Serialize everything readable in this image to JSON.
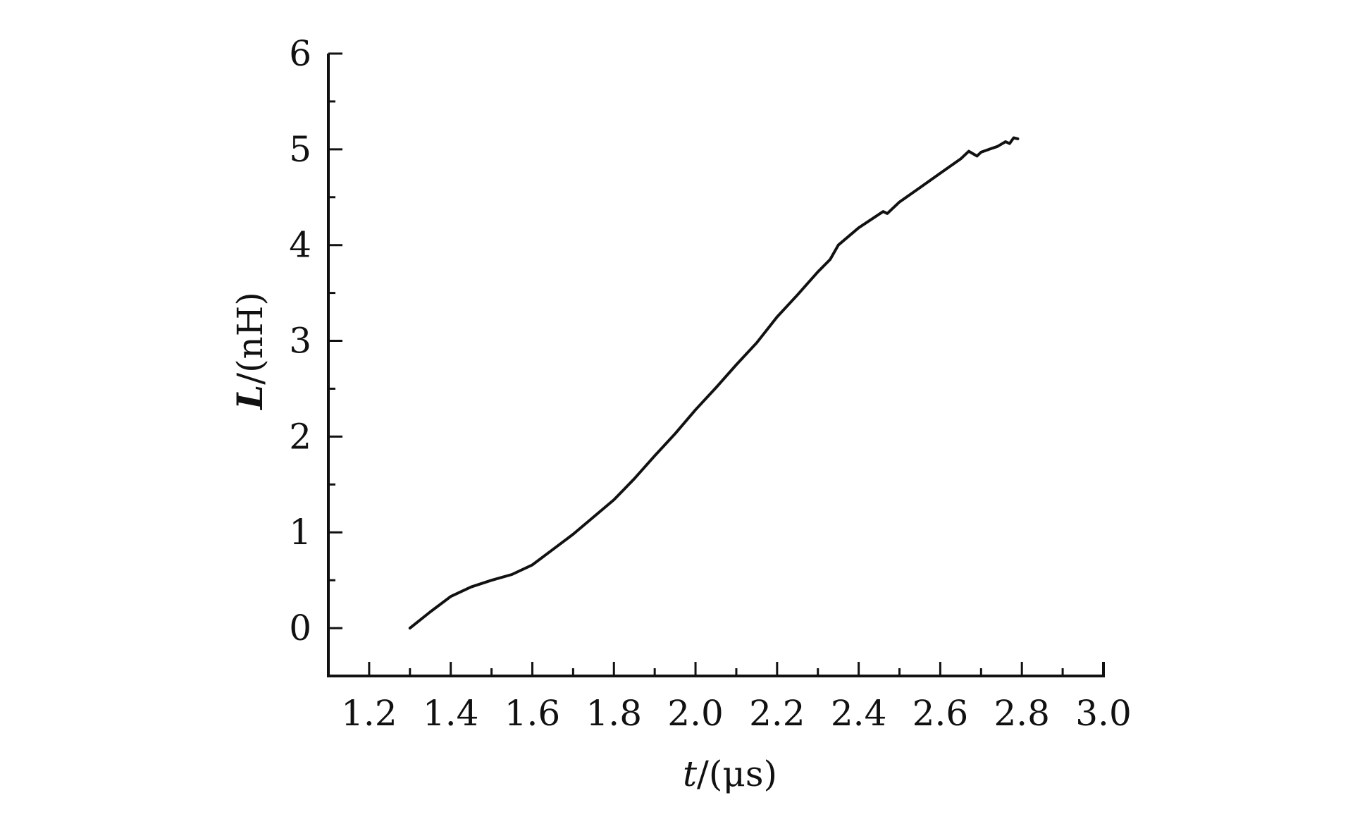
{
  "chart_data": {
    "type": "line",
    "title": "",
    "xlabel": "t/(μs)",
    "ylabel": "L/(nH)",
    "xlabel_parts": {
      "italic": "t",
      "rest": "/(μs)"
    },
    "ylabel_parts": {
      "italic": "L",
      "rest": "/(nH)"
    },
    "xlim": [
      1.1,
      3.0
    ],
    "ylim": [
      -0.5,
      6
    ],
    "xticks": [
      "1.2",
      "1.4",
      "1.6",
      "1.8",
      "2.0",
      "2.2",
      "2.4",
      "2.6",
      "2.8",
      "3.0"
    ],
    "yticks": [
      "0",
      "1",
      "2",
      "3",
      "4",
      "5",
      "6"
    ],
    "grid": false,
    "line_color": "#111111",
    "series": [
      {
        "x": [
          1.3,
          1.35,
          1.4,
          1.45,
          1.5,
          1.55,
          1.6,
          1.65,
          1.7,
          1.75,
          1.8,
          1.85,
          1.9,
          1.95,
          2.0,
          2.05,
          2.1,
          2.15,
          2.2,
          2.25,
          2.3,
          2.33,
          2.35,
          2.4,
          2.46,
          2.47,
          2.5,
          2.55,
          2.6,
          2.65,
          2.67,
          2.69,
          2.7,
          2.72,
          2.74,
          2.76,
          2.77,
          2.78,
          2.79
        ],
        "y": [
          0.0,
          0.17,
          0.33,
          0.43,
          0.5,
          0.56,
          0.66,
          0.82,
          0.98,
          1.16,
          1.34,
          1.56,
          1.8,
          2.03,
          2.28,
          2.51,
          2.75,
          2.98,
          3.25,
          3.48,
          3.72,
          3.85,
          4.0,
          4.18,
          4.35,
          4.33,
          4.45,
          4.6,
          4.75,
          4.9,
          4.98,
          4.93,
          4.97,
          5.0,
          5.03,
          5.08,
          5.06,
          5.12,
          5.11
        ]
      }
    ]
  }
}
